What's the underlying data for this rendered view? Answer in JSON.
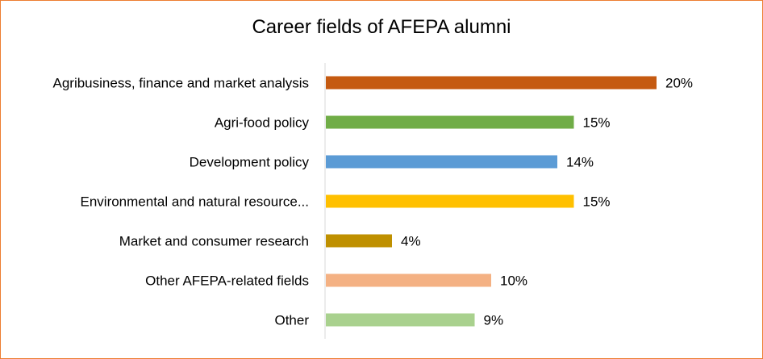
{
  "chart_data": {
    "type": "bar",
    "orientation": "horizontal",
    "title": "Career fields of AFEPA alumni",
    "categories": [
      "Agribusiness, finance and market analysis",
      "Agri-food policy",
      "Development policy",
      "Environmental and natural resource...",
      "Market and consumer research",
      "Other AFEPA-related fields",
      "Other"
    ],
    "values": [
      20,
      15,
      14,
      15,
      4,
      10,
      9
    ],
    "value_labels": [
      "20%",
      "15%",
      "14%",
      "15%",
      "4%",
      "10%",
      "9%"
    ],
    "colors": [
      "#C55A11",
      "#70AD47",
      "#5B9BD5",
      "#FFC000",
      "#BF9000",
      "#F4B183",
      "#A9D18E"
    ],
    "xlim": [
      0,
      20
    ],
    "grid": false,
    "legend": "none"
  },
  "frame_color": "#ED7D31"
}
